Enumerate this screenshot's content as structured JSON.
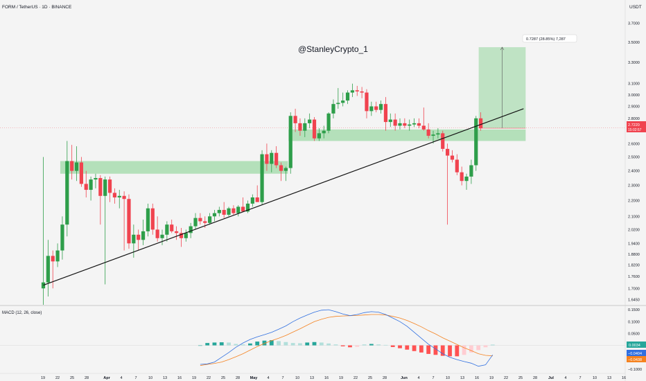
{
  "header": {
    "symbol_line": "FORM / TetherUS · 1D · BINANCE",
    "currency": "USDT",
    "watermark": "@StanleyCrypto_1"
  },
  "colors": {
    "up": "#2e9e4a",
    "down": "#f0434f",
    "zone": "#7fcf8a",
    "trend": "#111111",
    "macd_line": "#2f6fe0",
    "signal_line": "#f5821f",
    "hist_pos_strong": "#26a69a",
    "hist_pos_weak": "#b2dfdb",
    "hist_neg_strong": "#ff5252",
    "hist_neg_weak": "#ffcdd2"
  },
  "price_axis": {
    "ticks": [
      "3.7000",
      "3.5000",
      "3.3000",
      "3.1000",
      "3.0000",
      "2.9000",
      "2.8000",
      "2.6000",
      "2.5000",
      "2.4000",
      "2.3000",
      "2.2000",
      "2.1000",
      "2.0200",
      "1.9400",
      "1.8800",
      "1.8200",
      "1.7600",
      "1.7000",
      "1.6450"
    ],
    "current_price": "2.7220",
    "countdown": "15:02:57"
  },
  "macd": {
    "title": "MACD (12, 26, close)",
    "ticks": [
      "0.1500",
      "0.1000",
      "0.0500",
      "0.0000",
      "−0.0500",
      "−0.1000"
    ],
    "value_hist": "0.0034",
    "value_macd": "−0.0404",
    "value_signal": "−0.0438"
  },
  "measure": {
    "label": "0.7287 (28.85%) 7,287"
  },
  "time_axis": {
    "labels": [
      "19",
      "22",
      "25",
      "28",
      "Apr",
      "4",
      "7",
      "10",
      "13",
      "16",
      "19",
      "22",
      "25",
      "28",
      "May",
      "4",
      "7",
      "10",
      "13",
      "16",
      "19",
      "22",
      "25",
      "28",
      "Jun",
      "4",
      "7",
      "10",
      "13",
      "16",
      "19",
      "22",
      "25",
      "28",
      "Jul",
      "4",
      "7",
      "10",
      "13",
      "16"
    ]
  },
  "chart_data": {
    "type": "candlestick",
    "title": "FORM / TetherUS · 1D · BINANCE",
    "y_scale": "log",
    "ylim": [
      1.62,
      3.82
    ],
    "candles": [
      {
        "t": "Mar 19",
        "o": 1.7,
        "h": 2.5,
        "l": 1.62,
        "c": 1.73
      },
      {
        "t": "Mar 20",
        "o": 1.73,
        "h": 1.96,
        "l": 1.66,
        "c": 1.87
      },
      {
        "t": "Mar 21",
        "o": 1.87,
        "h": 1.9,
        "l": 1.7,
        "c": 1.84
      },
      {
        "t": "Mar 22",
        "o": 1.84,
        "h": 1.94,
        "l": 1.81,
        "c": 1.9
      },
      {
        "t": "Mar 23",
        "o": 1.9,
        "h": 2.1,
        "l": 1.85,
        "c": 2.05
      },
      {
        "t": "Mar 24",
        "o": 2.05,
        "h": 2.62,
        "l": 1.98,
        "c": 2.47
      },
      {
        "t": "Mar 25",
        "o": 2.47,
        "h": 2.59,
        "l": 2.34,
        "c": 2.4
      },
      {
        "t": "Mar 26",
        "o": 2.4,
        "h": 2.58,
        "l": 2.33,
        "c": 2.46
      },
      {
        "t": "Mar 27",
        "o": 2.46,
        "h": 2.5,
        "l": 2.29,
        "c": 2.31
      },
      {
        "t": "Mar 28",
        "o": 2.31,
        "h": 2.4,
        "l": 2.22,
        "c": 2.27
      },
      {
        "t": "Mar 29",
        "o": 2.27,
        "h": 2.36,
        "l": 2.2,
        "c": 2.34
      },
      {
        "t": "Mar 30",
        "o": 2.34,
        "h": 2.38,
        "l": 2.28,
        "c": 2.35
      },
      {
        "t": "Mar 31",
        "o": 2.35,
        "h": 2.37,
        "l": 2.05,
        "c": 2.23
      },
      {
        "t": "Apr 1",
        "o": 2.23,
        "h": 2.36,
        "l": 1.72,
        "c": 2.34
      },
      {
        "t": "Apr 2",
        "o": 2.34,
        "h": 2.36,
        "l": 2.19,
        "c": 2.25
      },
      {
        "t": "Apr 3",
        "o": 2.25,
        "h": 2.28,
        "l": 2.18,
        "c": 2.22
      },
      {
        "t": "Apr 4",
        "o": 2.22,
        "h": 2.27,
        "l": 2.15,
        "c": 2.23
      },
      {
        "t": "Apr 5",
        "o": 2.23,
        "h": 2.26,
        "l": 1.9,
        "c": 2.21
      },
      {
        "t": "Apr 6",
        "o": 2.21,
        "h": 2.24,
        "l": 1.91,
        "c": 1.94
      },
      {
        "t": "Apr 7",
        "o": 1.94,
        "h": 2.05,
        "l": 1.86,
        "c": 1.99
      },
      {
        "t": "Apr 8",
        "o": 1.99,
        "h": 2.02,
        "l": 1.9,
        "c": 1.96
      },
      {
        "t": "Apr 9",
        "o": 1.96,
        "h": 2.08,
        "l": 1.93,
        "c": 2.01
      },
      {
        "t": "Apr 10",
        "o": 2.01,
        "h": 2.18,
        "l": 1.98,
        "c": 2.15
      },
      {
        "t": "Apr 11",
        "o": 2.15,
        "h": 2.18,
        "l": 1.99,
        "c": 2.02
      },
      {
        "t": "Apr 12",
        "o": 2.02,
        "h": 2.1,
        "l": 1.95,
        "c": 1.97
      },
      {
        "t": "Apr 13",
        "o": 1.97,
        "h": 2.02,
        "l": 1.93,
        "c": 1.99
      },
      {
        "t": "Apr 14",
        "o": 1.99,
        "h": 2.07,
        "l": 1.95,
        "c": 2.05
      },
      {
        "t": "Apr 15",
        "o": 2.05,
        "h": 2.08,
        "l": 2.0,
        "c": 2.01
      },
      {
        "t": "Apr 16",
        "o": 2.01,
        "h": 2.04,
        "l": 1.96,
        "c": 2.0
      },
      {
        "t": "Apr 17",
        "o": 2.0,
        "h": 2.03,
        "l": 1.92,
        "c": 1.97
      },
      {
        "t": "Apr 18",
        "o": 1.97,
        "h": 2.02,
        "l": 1.95,
        "c": 2.0
      },
      {
        "t": "Apr 19",
        "o": 2.0,
        "h": 2.06,
        "l": 1.97,
        "c": 2.04
      },
      {
        "t": "Apr 20",
        "o": 2.04,
        "h": 2.12,
        "l": 2.02,
        "c": 2.09
      },
      {
        "t": "Apr 21",
        "o": 2.09,
        "h": 2.12,
        "l": 2.05,
        "c": 2.07
      },
      {
        "t": "Apr 22",
        "o": 2.07,
        "h": 2.1,
        "l": 2.03,
        "c": 2.06
      },
      {
        "t": "Apr 23",
        "o": 2.06,
        "h": 2.12,
        "l": 2.05,
        "c": 2.1
      },
      {
        "t": "Apr 24",
        "o": 2.1,
        "h": 2.14,
        "l": 2.07,
        "c": 2.12
      },
      {
        "t": "Apr 25",
        "o": 2.12,
        "h": 2.16,
        "l": 2.1,
        "c": 2.14
      },
      {
        "t": "Apr 26",
        "o": 2.14,
        "h": 2.19,
        "l": 2.09,
        "c": 2.11
      },
      {
        "t": "Apr 27",
        "o": 2.11,
        "h": 2.16,
        "l": 2.1,
        "c": 2.15
      },
      {
        "t": "Apr 28",
        "o": 2.15,
        "h": 2.17,
        "l": 2.11,
        "c": 2.12
      },
      {
        "t": "Apr 29",
        "o": 2.12,
        "h": 2.17,
        "l": 2.1,
        "c": 2.16
      },
      {
        "t": "Apr 30",
        "o": 2.16,
        "h": 2.22,
        "l": 2.14,
        "c": 2.13
      },
      {
        "t": "May 1",
        "o": 2.13,
        "h": 2.2,
        "l": 2.12,
        "c": 2.18
      },
      {
        "t": "May 2",
        "o": 2.18,
        "h": 2.24,
        "l": 2.16,
        "c": 2.22
      },
      {
        "t": "May 3",
        "o": 2.22,
        "h": 2.3,
        "l": 2.2,
        "c": 2.19
      },
      {
        "t": "May 4",
        "o": 2.19,
        "h": 2.55,
        "l": 2.17,
        "c": 2.52
      },
      {
        "t": "May 5",
        "o": 2.52,
        "h": 2.6,
        "l": 2.4,
        "c": 2.45
      },
      {
        "t": "May 6",
        "o": 2.45,
        "h": 2.55,
        "l": 2.39,
        "c": 2.53
      },
      {
        "t": "May 7",
        "o": 2.53,
        "h": 2.58,
        "l": 2.42,
        "c": 2.44
      },
      {
        "t": "May 8",
        "o": 2.44,
        "h": 2.46,
        "l": 2.33,
        "c": 2.4
      },
      {
        "t": "May 9",
        "o": 2.4,
        "h": 2.43,
        "l": 2.33,
        "c": 2.42
      },
      {
        "t": "May 10",
        "o": 2.42,
        "h": 2.85,
        "l": 2.38,
        "c": 2.82
      },
      {
        "t": "May 11",
        "o": 2.82,
        "h": 2.88,
        "l": 2.69,
        "c": 2.76
      },
      {
        "t": "May 12",
        "o": 2.76,
        "h": 2.8,
        "l": 2.66,
        "c": 2.7
      },
      {
        "t": "May 13",
        "o": 2.7,
        "h": 2.8,
        "l": 2.65,
        "c": 2.76
      },
      {
        "t": "May 14",
        "o": 2.76,
        "h": 2.84,
        "l": 2.72,
        "c": 2.79
      },
      {
        "t": "May 15",
        "o": 2.79,
        "h": 2.81,
        "l": 2.62,
        "c": 2.64
      },
      {
        "t": "May 16",
        "o": 2.64,
        "h": 2.72,
        "l": 2.62,
        "c": 2.68
      },
      {
        "t": "May 17",
        "o": 2.68,
        "h": 2.74,
        "l": 2.64,
        "c": 2.7
      },
      {
        "t": "May 18",
        "o": 2.7,
        "h": 2.85,
        "l": 2.68,
        "c": 2.84
      },
      {
        "t": "May 19",
        "o": 2.84,
        "h": 2.96,
        "l": 2.8,
        "c": 2.92
      },
      {
        "t": "May 20",
        "o": 2.92,
        "h": 3.06,
        "l": 2.88,
        "c": 2.93
      },
      {
        "t": "May 21",
        "o": 2.93,
        "h": 3.02,
        "l": 2.9,
        "c": 2.95
      },
      {
        "t": "May 22",
        "o": 2.95,
        "h": 3.04,
        "l": 2.92,
        "c": 3.02
      },
      {
        "t": "May 23",
        "o": 3.02,
        "h": 3.1,
        "l": 2.98,
        "c": 3.04
      },
      {
        "t": "May 24",
        "o": 3.04,
        "h": 3.08,
        "l": 2.99,
        "c": 3.03
      },
      {
        "t": "May 25",
        "o": 3.03,
        "h": 3.07,
        "l": 2.97,
        "c": 3.02
      },
      {
        "t": "May 26",
        "o": 3.02,
        "h": 3.05,
        "l": 2.8,
        "c": 2.86
      },
      {
        "t": "May 27",
        "o": 2.86,
        "h": 2.94,
        "l": 2.82,
        "c": 2.9
      },
      {
        "t": "May 28",
        "o": 2.9,
        "h": 2.94,
        "l": 2.85,
        "c": 2.87
      },
      {
        "t": "May 29",
        "o": 2.87,
        "h": 2.95,
        "l": 2.84,
        "c": 2.92
      },
      {
        "t": "May 30",
        "o": 2.92,
        "h": 2.98,
        "l": 2.7,
        "c": 2.77
      },
      {
        "t": "May 31",
        "o": 2.77,
        "h": 2.84,
        "l": 2.73,
        "c": 2.79
      },
      {
        "t": "Jun 1",
        "o": 2.79,
        "h": 2.84,
        "l": 2.7,
        "c": 2.74
      },
      {
        "t": "Jun 2",
        "o": 2.74,
        "h": 2.8,
        "l": 2.71,
        "c": 2.76
      },
      {
        "t": "Jun 3",
        "o": 2.76,
        "h": 2.8,
        "l": 2.72,
        "c": 2.74
      },
      {
        "t": "Jun 4",
        "o": 2.74,
        "h": 2.79,
        "l": 2.7,
        "c": 2.75
      },
      {
        "t": "Jun 5",
        "o": 2.75,
        "h": 2.8,
        "l": 2.73,
        "c": 2.76
      },
      {
        "t": "Jun 6",
        "o": 2.76,
        "h": 2.8,
        "l": 2.72,
        "c": 2.74
      },
      {
        "t": "Jun 7",
        "o": 2.74,
        "h": 2.89,
        "l": 2.7,
        "c": 2.71
      },
      {
        "t": "Jun 8",
        "o": 2.71,
        "h": 2.76,
        "l": 2.64,
        "c": 2.66
      },
      {
        "t": "Jun 9",
        "o": 2.66,
        "h": 2.7,
        "l": 2.6,
        "c": 2.67
      },
      {
        "t": "Jun 10",
        "o": 2.67,
        "h": 2.72,
        "l": 2.64,
        "c": 2.68
      },
      {
        "t": "Jun 11",
        "o": 2.68,
        "h": 2.7,
        "l": 2.54,
        "c": 2.56
      },
      {
        "t": "Jun 12",
        "o": 2.56,
        "h": 2.6,
        "l": 2.05,
        "c": 2.51
      },
      {
        "t": "Jun 13",
        "o": 2.51,
        "h": 2.55,
        "l": 2.46,
        "c": 2.48
      },
      {
        "t": "Jun 14",
        "o": 2.48,
        "h": 2.52,
        "l": 2.37,
        "c": 2.39
      },
      {
        "t": "Jun 15",
        "o": 2.39,
        "h": 2.43,
        "l": 2.3,
        "c": 2.33
      },
      {
        "t": "Jun 16",
        "o": 2.33,
        "h": 2.38,
        "l": 2.27,
        "c": 2.36
      },
      {
        "t": "Jun 17",
        "o": 2.36,
        "h": 2.48,
        "l": 2.31,
        "c": 2.44
      },
      {
        "t": "Jun 18",
        "o": 2.44,
        "h": 2.82,
        "l": 2.4,
        "c": 2.8
      },
      {
        "t": "Jun 19",
        "o": 2.8,
        "h": 2.85,
        "l": 2.7,
        "c": 2.72
      }
    ],
    "support_zones": [
      {
        "from": "Mar 23",
        "to": "May 9",
        "low": 2.38,
        "high": 2.47
      },
      {
        "from": "May 10",
        "to": "Jun 28",
        "low": 2.62,
        "high": 2.71
      }
    ],
    "trendline": {
      "from": {
        "t": "Mar 19",
        "price": 1.716
      },
      "to": {
        "t": "Jun 28",
        "price": 2.88
      }
    },
    "projection": {
      "from": "Jun 19",
      "to": "Jun 28",
      "low": 2.72,
      "high": 3.45
    },
    "macd_series": {
      "macd": [
        -0.08,
        -0.078,
        -0.07,
        -0.05,
        -0.03,
        -0.008,
        0.01,
        0.025,
        0.036,
        0.045,
        0.055,
        0.068,
        0.082,
        0.1,
        0.115,
        0.128,
        0.14,
        0.148,
        0.15,
        0.142,
        0.132,
        0.125,
        0.13,
        0.138,
        0.142,
        0.14,
        0.13,
        0.115,
        0.1,
        0.08,
        0.055,
        0.03,
        0.005,
        -0.015,
        -0.035,
        -0.05,
        -0.06,
        -0.068,
        -0.075,
        -0.088,
        -0.082,
        -0.04
      ],
      "signal": [
        -0.085,
        -0.08,
        -0.076,
        -0.07,
        -0.06,
        -0.048,
        -0.035,
        -0.02,
        -0.005,
        0.008,
        0.02,
        0.03,
        0.042,
        0.056,
        0.07,
        0.085,
        0.1,
        0.11,
        0.118,
        0.122,
        0.124,
        0.125,
        0.126,
        0.128,
        0.13,
        0.13,
        0.128,
        0.122,
        0.115,
        0.105,
        0.092,
        0.078,
        0.062,
        0.048,
        0.032,
        0.018,
        0.004,
        -0.01,
        -0.022,
        -0.035,
        -0.042,
        -0.044
      ],
      "histogram": [
        0.0,
        0.01,
        0.012,
        0.013,
        0.012,
        0.006,
        0.004,
        0.008,
        0.016,
        0.02,
        0.022,
        0.018,
        0.014,
        0.01,
        0.009,
        0.012,
        0.014,
        0.012,
        0.008,
        0.004,
        -0.004,
        -0.008,
        -0.006,
        0.004,
        0.006,
        0.004,
        0.002,
        -0.007,
        -0.012,
        -0.018,
        -0.024,
        -0.03,
        -0.036,
        -0.04,
        -0.044,
        -0.046,
        -0.046,
        -0.04,
        -0.03,
        -0.02,
        -0.008,
        0.0034
      ]
    }
  }
}
